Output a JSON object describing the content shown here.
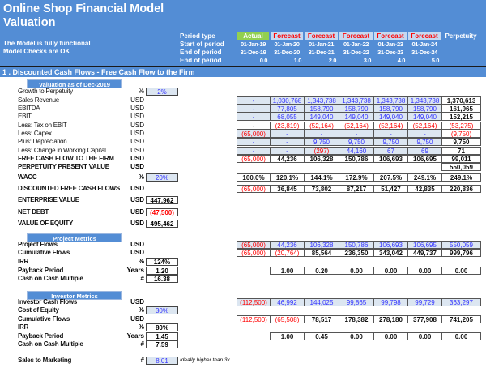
{
  "header": {
    "title": "Online Shop Financial Model",
    "subtitle": "Valuation",
    "status_functional": "The Model is fully functional",
    "status_checks": "Model Checks are OK",
    "row_labels": [
      "Period type",
      "Start of period",
      "End of period",
      "End of period"
    ],
    "period_types": [
      "Actual",
      "Forecast",
      "Forecast",
      "Forecast",
      "Forecast",
      "Forecast",
      "Perpetuity"
    ],
    "start_dates": [
      "01-Jan-19",
      "01-Jan-20",
      "01-Jan-21",
      "01-Jan-22",
      "01-Jan-23",
      "01-Jan-24",
      ""
    ],
    "end_dates": [
      "31-Dec-19",
      "31-Dec-20",
      "31-Dec-21",
      "31-Dec-22",
      "31-Dec-23",
      "31-Dec-24",
      ""
    ],
    "period_numbers": [
      "0.0",
      "1.0",
      "2.0",
      "3.0",
      "4.0",
      "5.0",
      ""
    ]
  },
  "colors": {
    "header_blue": "#538dd5",
    "actual_green": "#92d050",
    "forecast_bg": "#c5d9f1",
    "forecast_text": "#ff0000",
    "input_fill": "#dce6f1",
    "input_text": "#3333ff",
    "negative": "#ff0000"
  },
  "section_title": "1 . Discounted Cash Flows - Free Cash Flow to the Firm",
  "valuation": {
    "box_title": "Valuation as of Dec-2019",
    "rows": [
      {
        "label": "Growth to Perpetuity",
        "unit": "%",
        "input": "2%",
        "input_type": "inp"
      },
      {
        "label": "Sales Revenue",
        "unit": "USD",
        "fill": true,
        "values": [
          "-",
          "1,030,768",
          "1,343,738",
          "1,343,738",
          "1,343,738",
          "1,343,738",
          "1,370,613"
        ]
      },
      {
        "label": "EBITDA",
        "unit": "USD",
        "fill": true,
        "values": [
          "-",
          "77,805",
          "158,790",
          "158,790",
          "158,790",
          "158,790",
          "161,965"
        ]
      },
      {
        "label": "EBIT",
        "unit": "USD",
        "fill": true,
        "values": [
          "-",
          "68,055",
          "149,040",
          "149,040",
          "149,040",
          "149,040",
          "152,215"
        ]
      },
      {
        "label": "Less: Tax on EBIT",
        "unit": "USD",
        "fill": false,
        "values": [
          "-",
          "(23,819)",
          "(52,164)",
          "(52,164)",
          "(52,164)",
          "(52,164)",
          "(53,275)"
        ]
      },
      {
        "label": "Less: Capex",
        "unit": "USD",
        "fill": true,
        "values": [
          "(65,000)",
          "-",
          "-",
          "-",
          "-",
          "-",
          "(9,750)"
        ]
      },
      {
        "label": "Plus: Depreciation",
        "unit": "USD",
        "fill": true,
        "values": [
          "-",
          "-",
          "9,750",
          "9,750",
          "9,750",
          "9,750",
          "9,750"
        ]
      },
      {
        "label": "Less: Change in Working Capital",
        "unit": "USD",
        "fill": true,
        "values": [
          "-",
          "-",
          "(297)",
          "44,160",
          "67",
          "69",
          "71"
        ]
      },
      {
        "label": "FREE CASH FLOW TO THE FIRM",
        "unit": "USD",
        "bold": true,
        "fill": false,
        "values": [
          "(65,000)",
          "44,236",
          "106,328",
          "150,786",
          "106,693",
          "106,695",
          "99,011"
        ]
      },
      {
        "label": "PERPETUITY PRESENT VALUE",
        "unit": "USD",
        "bold": true,
        "values": [
          "",
          "",
          "",
          "",
          "",
          "",
          "550,059"
        ]
      },
      {
        "label": "WACC",
        "unit": "%",
        "bold": true,
        "input": "20%",
        "input_type": "inp",
        "values": [
          "100.0%",
          "120.1%",
          "144.1%",
          "172.9%",
          "207.5%",
          "249.1%",
          "249.1%"
        ]
      },
      {
        "label": "DISCOUNTED FREE CASH FLOWS",
        "unit": "USD",
        "bold": true,
        "values": [
          "(65,000)",
          "36,845",
          "73,802",
          "87,217",
          "51,427",
          "42,835",
          "220,836"
        ]
      },
      {
        "label": "ENTERPRISE VALUE",
        "unit": "USD",
        "bold": true,
        "input": "447,962"
      },
      {
        "label": "NET DEBT",
        "unit": "USD",
        "bold": true,
        "input": "(47,500)"
      },
      {
        "label": "VALUE OF EQUITY",
        "unit": "USD",
        "bold": true,
        "input": "495,462"
      }
    ]
  },
  "project_metrics": {
    "box_title": "Project Metrics",
    "rows": [
      {
        "label": "Project Flows",
        "unit": "USD",
        "bold": true,
        "fill": true,
        "fill_all": true,
        "values": [
          "(65,000)",
          "44,236",
          "106,328",
          "150,786",
          "106,693",
          "106,695",
          "550,059"
        ]
      },
      {
        "label": "Cumulative Flows",
        "unit": "USD",
        "bold": true,
        "values": [
          "(65,000)",
          "(20,764)",
          "85,564",
          "236,350",
          "343,042",
          "449,737",
          "999,796"
        ]
      },
      {
        "label": "IRR",
        "unit": "%",
        "bold": true,
        "input": "124%"
      },
      {
        "label": "Payback Period",
        "unit": "Years",
        "bold": true,
        "input": "1.20",
        "values": [
          "",
          "1.00",
          "0.20",
          "0.00",
          "0.00",
          "0.00",
          "0.00"
        ]
      },
      {
        "label": "Cash on Cash Multiple",
        "unit": "#",
        "bold": true,
        "input": "16.38"
      }
    ]
  },
  "investor_metrics": {
    "box_title": "Investor Metrics",
    "rows": [
      {
        "label": "Investor Cash Flows",
        "unit": "USD",
        "bold": true,
        "fill": true,
        "fill_all": true,
        "values": [
          "(112,500)",
          "46,992",
          "144,025",
          "99,865",
          "99,798",
          "99,729",
          "363,297"
        ]
      },
      {
        "label": "Cost of Equity",
        "unit": "%",
        "bold": true,
        "input": "30%",
        "input_type": "inp"
      },
      {
        "label": "Cumulative Flows",
        "unit": "USD",
        "bold": true,
        "values": [
          "(112,500)",
          "(65,508)",
          "78,517",
          "178,382",
          "278,180",
          "377,908",
          "741,205"
        ]
      },
      {
        "label": "IRR",
        "unit": "%",
        "bold": true,
        "input": "80%"
      },
      {
        "label": "Payback Period",
        "unit": "Years",
        "bold": true,
        "input": "1.45",
        "values": [
          "",
          "1.00",
          "0.45",
          "0.00",
          "0.00",
          "0.00",
          "0.00"
        ]
      },
      {
        "label": "Cash on Cash Multiple",
        "unit": "#",
        "bold": true,
        "input": "7.59"
      }
    ]
  },
  "sales_to_marketing": {
    "label": "Sales to Marketing",
    "unit": "#",
    "input": "8.01",
    "input_type": "inp",
    "note": "Ideally higher than 3x"
  }
}
